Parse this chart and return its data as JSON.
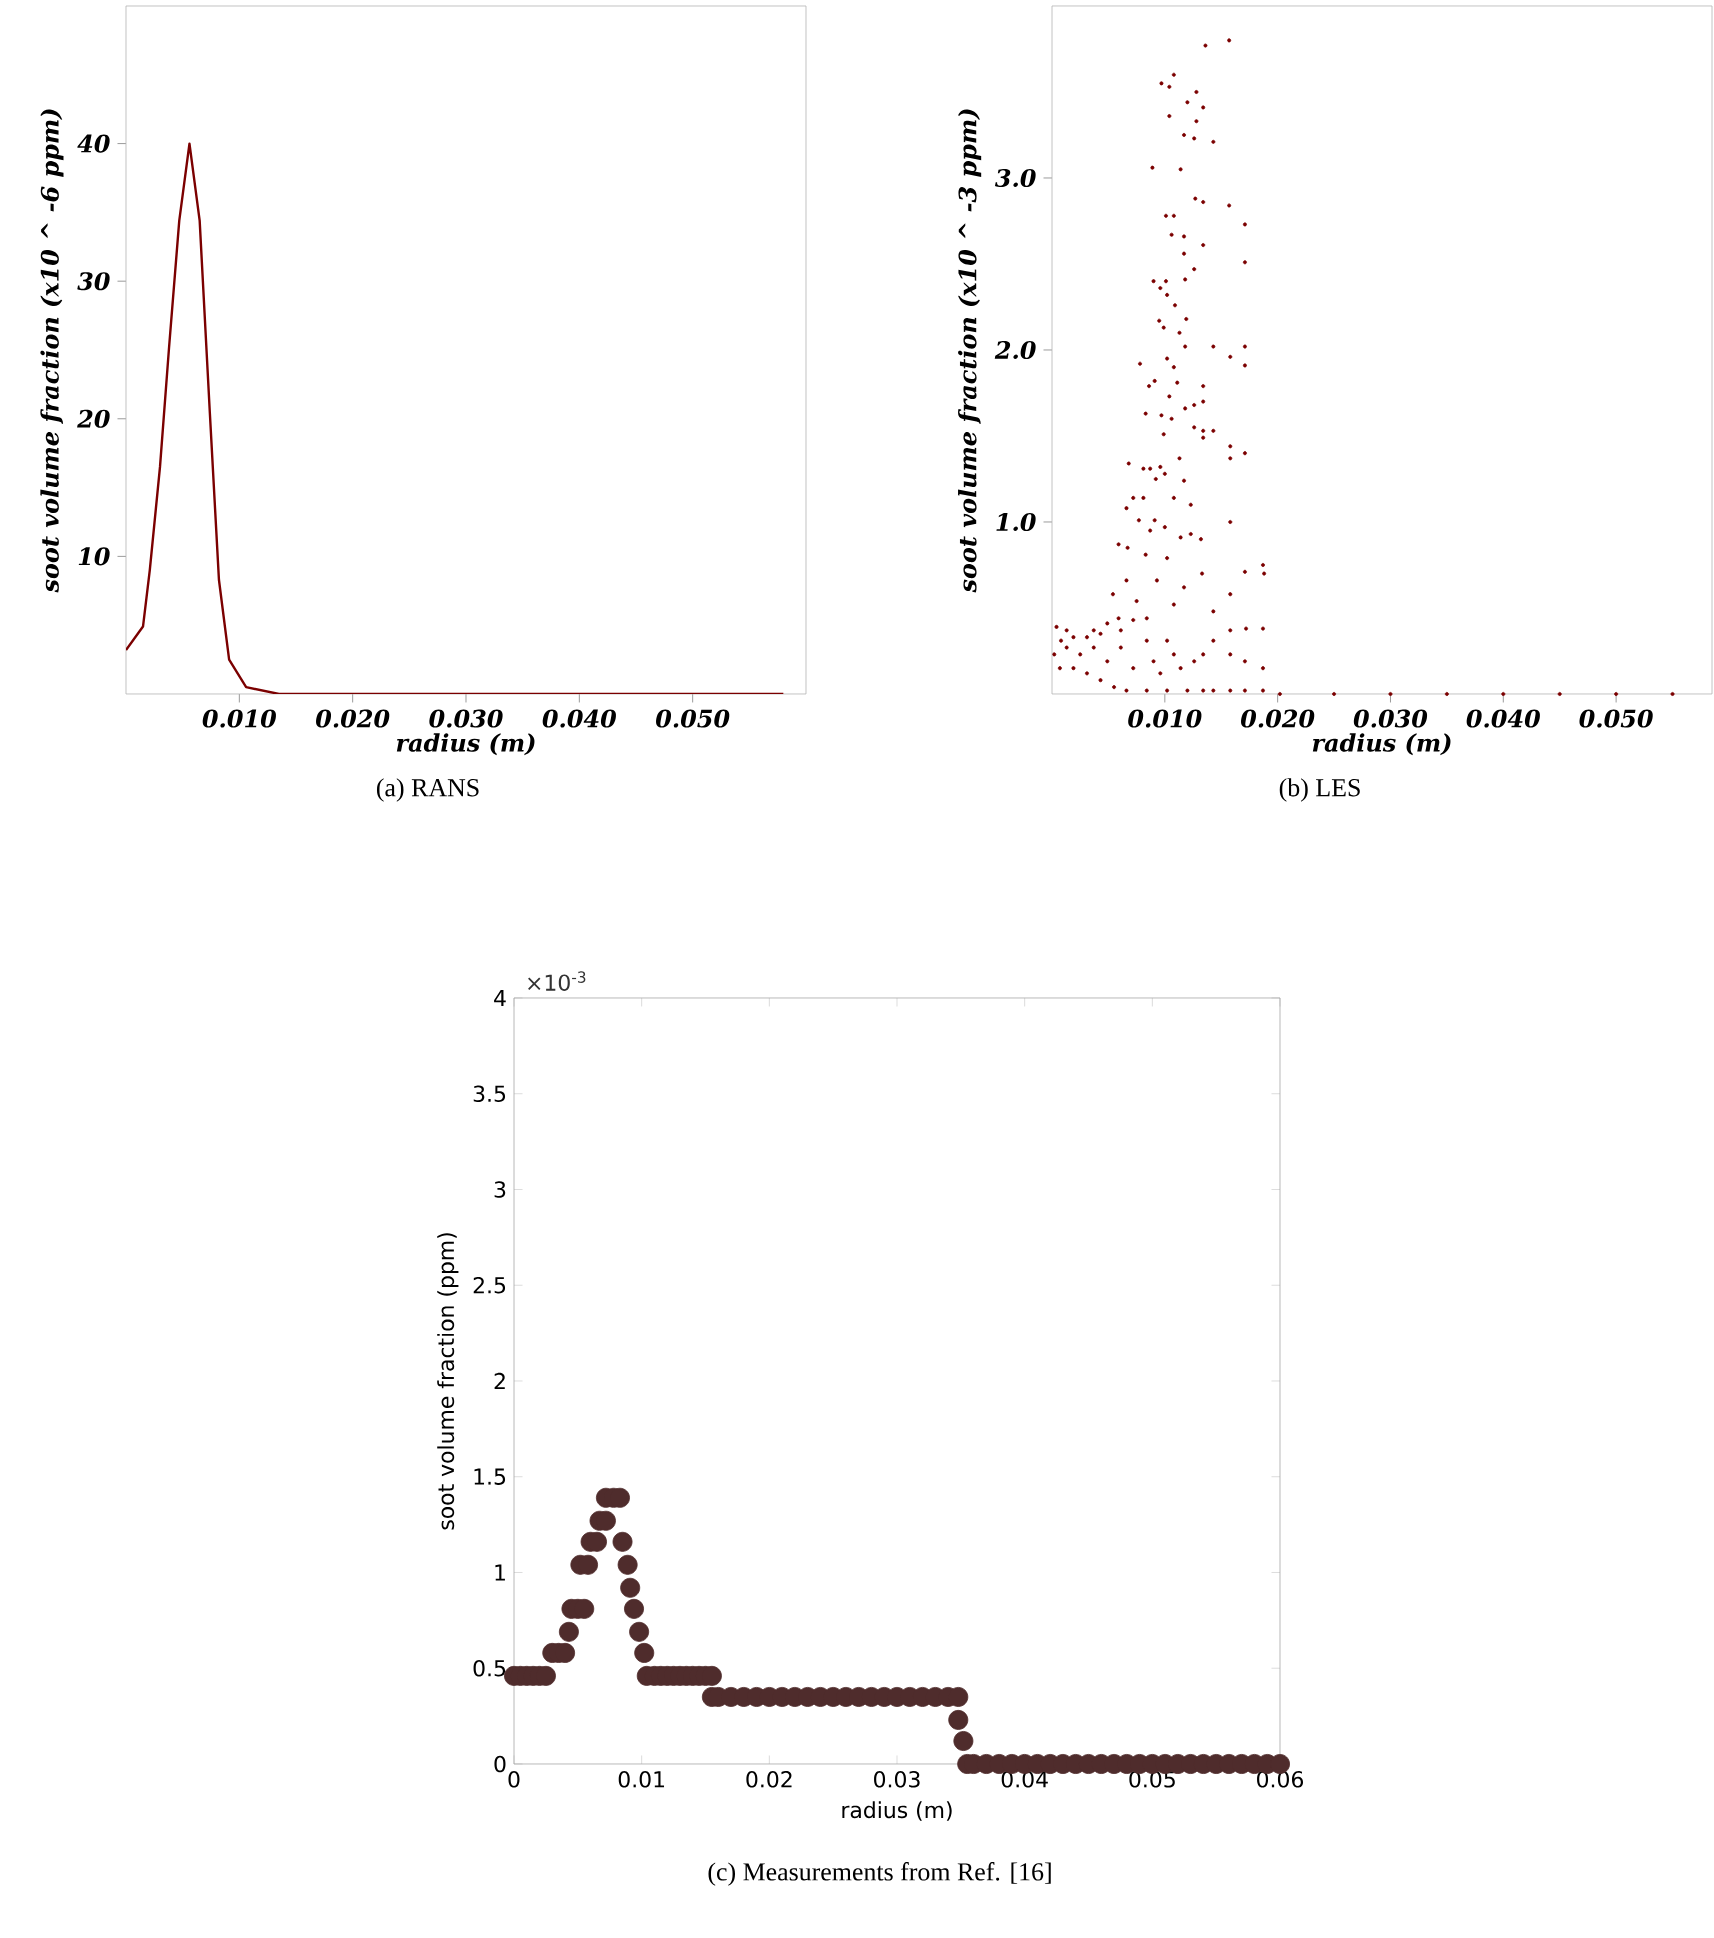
{
  "chart_data": [
    {
      "type": "line",
      "xlabel": "radius (m)",
      "ylabel": "soot volume fraction (x10 ^ -6 ppm)",
      "color": "#7b0000",
      "line_style": "solid",
      "x": [
        0,
        0.0015,
        0.0021,
        0.003,
        0.0038,
        0.0047,
        0.0056,
        0.0065,
        0.0074,
        0.0082,
        0.0091,
        0.0106,
        0.0135,
        0.02,
        0.03,
        0.04,
        0.05,
        0.058
      ],
      "values": [
        3.2,
        4.9,
        9.0,
        16.5,
        25.2,
        34.4,
        40.0,
        34.4,
        20.4,
        8.3,
        2.5,
        0.5,
        0,
        0,
        0,
        0,
        0,
        0
      ],
      "xlim": [
        0,
        0.06
      ],
      "ylim": [
        0,
        50
      ],
      "xticks": [
        {
          "value": 0.01,
          "label": "0.010"
        },
        {
          "value": 0.02,
          "label": "0.020"
        },
        {
          "value": 0.03,
          "label": "0.030"
        },
        {
          "value": 0.04,
          "label": "0.040"
        },
        {
          "value": 0.05,
          "label": "0.050"
        }
      ],
      "yticks": [
        10,
        20,
        30,
        40
      ],
      "annotations": [
        "(a) RANS"
      ]
    },
    {
      "type": "scatter",
      "xlabel": "radius (m)",
      "ylabel": "soot volume fraction (x10 ^ -3 ppm)",
      "color": "#7b0000",
      "marker": "circle",
      "x": [
        0.0157,
        0.0136,
        0.0108,
        0.0097,
        0.0104,
        0.0128,
        0.012,
        0.0134,
        0.0104,
        0.0128,
        0.0117,
        0.0143,
        0.0126,
        0.0114,
        0.0089,
        0.0127,
        0.0134,
        0.0157,
        0.0101,
        0.0108,
        0.0171,
        0.0106,
        0.0117,
        0.0134,
        0.0117,
        0.0171,
        0.0126,
        0.0118,
        0.009,
        0.0101,
        0.0096,
        0.0102,
        0.0109,
        0.0119,
        0.0095,
        0.0099,
        0.0113,
        0.0118,
        0.0143,
        0.0171,
        0.0158,
        0.0171,
        0.0078,
        0.0102,
        0.0108,
        0.0091,
        0.0086,
        0.0111,
        0.0134,
        0.0104,
        0.0126,
        0.0134,
        0.0118,
        0.0097,
        0.0083,
        0.0106,
        0.0126,
        0.0134,
        0.0143,
        0.0158,
        0.0134,
        0.0099,
        0.0171,
        0.0158,
        0.0113,
        0.0068,
        0.0081,
        0.0096,
        0.0087,
        0.01,
        0.0092,
        0.0117,
        0.0072,
        0.0081,
        0.0108,
        0.0123,
        0.0066,
        0.0077,
        0.0091,
        0.0158,
        0.01,
        0.0087,
        0.0123,
        0.0114,
        0.0132,
        0.0059,
        0.0067,
        0.0083,
        0.0102,
        0.0187,
        0.0171,
        0.0188,
        0.0066,
        0.0093,
        0.0117,
        0.0133,
        0.0158,
        0.0054,
        0.0075,
        0.0108,
        0.0143,
        0.0059,
        0.0004,
        0.0172,
        0.0187,
        0.0158,
        0.0013,
        0.0037,
        0.0049,
        0.0002,
        0.0008,
        0.0019,
        0.0031,
        0.0043,
        0.0061,
        0.0072,
        0.0084,
        0.0007,
        0.0019,
        0.0031,
        0.0043,
        0.0055,
        0.0066,
        0.0084,
        0.0102,
        0.012,
        0.0134,
        0.0143,
        0.0158,
        0.0171,
        0.0187,
        0.0025,
        0.0049,
        0.0072,
        0.0096,
        0.0114,
        0.0126,
        0.0134,
        0.0143,
        0.0158,
        0.0171,
        0.0187,
        0.0061,
        0.0084,
        0.0102,
        0.0108,
        0.009,
        0.0037,
        0.0013,
        0.0202,
        0.025,
        0.03,
        0.035,
        0.04,
        0.045,
        0.05,
        0.055
      ],
      "values": [
        3.8,
        3.77,
        3.6,
        3.55,
        3.53,
        3.5,
        3.44,
        3.41,
        3.36,
        3.33,
        3.25,
        3.21,
        3.23,
        3.05,
        3.06,
        2.88,
        2.86,
        2.84,
        2.78,
        2.78,
        2.73,
        2.67,
        2.66,
        2.61,
        2.56,
        2.51,
        2.47,
        2.41,
        2.4,
        2.4,
        2.36,
        2.32,
        2.26,
        2.18,
        2.17,
        2.13,
        2.1,
        2.02,
        2.02,
        2.02,
        1.96,
        1.91,
        1.92,
        1.95,
        1.9,
        1.82,
        1.79,
        1.81,
        1.79,
        1.73,
        1.68,
        1.7,
        1.66,
        1.62,
        1.63,
        1.6,
        1.55,
        1.53,
        1.53,
        1.44,
        1.49,
        1.51,
        1.4,
        1.37,
        1.37,
        1.34,
        1.31,
        1.32,
        1.31,
        1.28,
        1.25,
        1.24,
        1.14,
        1.14,
        1.14,
        1.1,
        1.08,
        1.01,
        1.01,
        1.0,
        0.97,
        0.95,
        0.93,
        0.91,
        0.9,
        0.87,
        0.85,
        0.81,
        0.79,
        0.75,
        0.71,
        0.7,
        0.66,
        0.66,
        0.62,
        0.7,
        0.58,
        0.58,
        0.54,
        0.52,
        0.48,
        0.44,
        0.39,
        0.38,
        0.38,
        0.37,
        0.37,
        0.37,
        0.41,
        0.23,
        0.31,
        0.33,
        0.33,
        0.35,
        0.37,
        0.43,
        0.44,
        0.15,
        0.15,
        0.12,
        0.08,
        0.04,
        0.02,
        0.02,
        0.02,
        0.02,
        0.02,
        0.02,
        0.02,
        0.02,
        0.02,
        0.23,
        0.19,
        0.15,
        0.12,
        0.15,
        0.19,
        0.23,
        0.31,
        0.23,
        0.19,
        0.15,
        0.27,
        0.31,
        0.31,
        0.23,
        0.19,
        0.27,
        0.27,
        0,
        0,
        0,
        0,
        0,
        0,
        0,
        0
      ],
      "xlim": [
        0,
        0.0585
      ],
      "ylim": [
        0,
        4
      ],
      "xticks": [
        {
          "value": 0.01,
          "label": "0.010"
        },
        {
          "value": 0.02,
          "label": "0.020"
        },
        {
          "value": 0.03,
          "label": "0.030"
        },
        {
          "value": 0.04,
          "label": "0.040"
        },
        {
          "value": 0.05,
          "label": "0.050"
        }
      ],
      "yticks": [
        {
          "value": 1,
          "label": "1.0"
        },
        {
          "value": 2,
          "label": "2.0"
        },
        {
          "value": 3,
          "label": "3.0"
        }
      ],
      "annotations": [
        "(b) LES"
      ]
    },
    {
      "type": "scatter",
      "xlabel": "radius (m)",
      "ylabel": "soot volume fraction (ppm)",
      "color": "#4f2c2c",
      "marker": "circle",
      "x": [
        0,
        0.0005,
        0.001,
        0.0015,
        0.002,
        0.0025,
        0.003,
        0.0035,
        0.004,
        0.0043,
        0.0045,
        0.005,
        0.0055,
        0.0052,
        0.0058,
        0.006,
        0.0065,
        0.0067,
        0.0072,
        0.0072,
        0.0078,
        0.0083,
        0.0085,
        0.0089,
        0.0091,
        0.0094,
        0.0098,
        0.0102,
        0.0104,
        0.011,
        0.0115,
        0.012,
        0.0125,
        0.013,
        0.0135,
        0.014,
        0.0145,
        0.015,
        0.0155,
        0.0155,
        0.016,
        0.017,
        0.018,
        0.019,
        0.02,
        0.021,
        0.022,
        0.023,
        0.024,
        0.025,
        0.026,
        0.027,
        0.028,
        0.029,
        0.03,
        0.031,
        0.032,
        0.033,
        0.034,
        0.0348,
        0.0348,
        0.0352,
        0.0355,
        0.036,
        0.037,
        0.038,
        0.039,
        0.04,
        0.041,
        0.042,
        0.043,
        0.044,
        0.045,
        0.046,
        0.047,
        0.048,
        0.049,
        0.05,
        0.051,
        0.052,
        0.053,
        0.054,
        0.055,
        0.056,
        0.057,
        0.058,
        0.059,
        0.06
      ],
      "values": [
        0.46,
        0.46,
        0.46,
        0.46,
        0.46,
        0.46,
        0.58,
        0.58,
        0.58,
        0.69,
        0.81,
        0.81,
        0.81,
        1.04,
        1.04,
        1.16,
        1.16,
        1.27,
        1.27,
        1.39,
        1.39,
        1.39,
        1.16,
        1.04,
        0.92,
        0.81,
        0.69,
        0.58,
        0.46,
        0.46,
        0.46,
        0.46,
        0.46,
        0.46,
        0.46,
        0.46,
        0.46,
        0.46,
        0.46,
        0.35,
        0.35,
        0.35,
        0.35,
        0.35,
        0.35,
        0.35,
        0.35,
        0.35,
        0.35,
        0.35,
        0.35,
        0.35,
        0.35,
        0.35,
        0.35,
        0.35,
        0.35,
        0.35,
        0.35,
        0.35,
        0.23,
        0.12,
        0,
        0,
        0,
        0,
        0,
        0,
        0,
        0,
        0,
        0,
        0,
        0,
        0,
        0,
        0,
        0,
        0,
        0,
        0,
        0,
        0,
        0,
        0,
        0,
        0,
        0
      ],
      "xlim": [
        0,
        0.06
      ],
      "ylim": [
        0,
        4
      ],
      "xticks": [
        0,
        0.01,
        0.02,
        0.03,
        0.04,
        0.05,
        0.06
      ],
      "yticks": [
        0,
        0.5,
        1,
        1.5,
        2,
        2.5,
        3,
        3.5,
        4
      ],
      "annotations": [
        "×10$^{-3}$",
        "(c) Measurements from Ref. [16]"
      ]
    }
  ]
}
